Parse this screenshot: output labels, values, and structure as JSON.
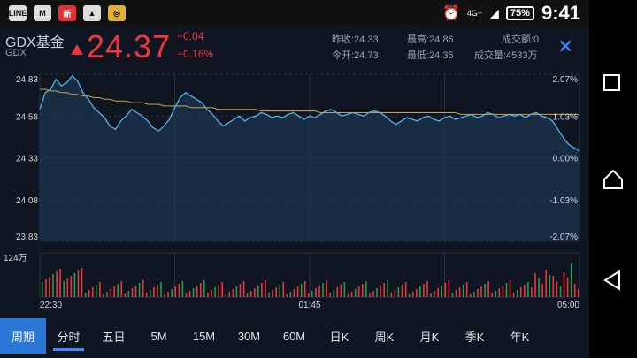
{
  "status_bar": {
    "icons": [
      "line-icon",
      "gmail-icon",
      "news-icon",
      "gallery-icon",
      "app-icon"
    ],
    "network": "4G+",
    "battery": "75%",
    "time": "9:41"
  },
  "header": {
    "name": "GDX基金",
    "code": "GDX",
    "price": "24.37",
    "change": "+0.04",
    "change_pct": "+0.16%",
    "prev_close": "昨收:24.33",
    "open": "今开:24.73",
    "high": "最高:24.86",
    "low": "最低:24.35",
    "turnover": "成交额:0",
    "volume": "成交量:4533万"
  },
  "colors": {
    "up": "#f0363c",
    "down": "#1aa34a",
    "line": "#5fb0e8",
    "avg": "#c9a443",
    "accent": "#2a77d6"
  },
  "chart_data": {
    "type": "line",
    "y_left_ticks": [
      "24.83",
      "24.58",
      "24.33",
      "24.08",
      "23.83"
    ],
    "y_right_ticks": [
      "2.07%",
      "1.03%",
      "0.00%",
      "-1.03%",
      "-2.07%"
    ],
    "ylim": [
      23.83,
      24.83
    ],
    "x_ticks": [
      "22:30",
      "01:45",
      "05:00"
    ],
    "volume_label": "124万",
    "price_series": [
      24.62,
      24.72,
      24.74,
      24.8,
      24.76,
      24.78,
      24.82,
      24.79,
      24.72,
      24.68,
      24.63,
      24.6,
      24.57,
      24.52,
      24.5,
      24.55,
      24.58,
      24.62,
      24.6,
      24.58,
      24.55,
      24.51,
      24.49,
      24.52,
      24.56,
      24.63,
      24.69,
      24.72,
      24.7,
      24.68,
      24.66,
      24.62,
      24.59,
      24.55,
      24.52,
      24.54,
      24.56,
      24.58,
      24.55,
      24.57,
      24.58,
      24.6,
      24.59,
      24.57,
      24.58,
      24.57,
      24.59,
      24.6,
      24.58,
      24.56,
      24.58,
      24.57,
      24.59,
      24.61,
      24.62,
      24.6,
      24.58,
      24.59,
      24.6,
      24.59,
      24.58,
      24.6,
      24.61,
      24.6,
      24.58,
      24.55,
      24.53,
      24.55,
      24.57,
      24.56,
      24.55,
      24.57,
      24.58,
      24.56,
      24.55,
      24.57,
      24.58,
      24.56,
      24.57,
      24.58,
      24.59,
      24.57,
      24.58,
      24.6,
      24.59,
      24.57,
      24.58,
      24.59,
      24.58,
      24.59,
      24.57,
      24.59,
      24.6,
      24.58,
      24.57,
      24.55,
      24.5,
      24.45,
      24.41,
      24.39,
      24.37
    ],
    "avg_series": [
      24.74,
      24.74,
      24.73,
      24.73,
      24.72,
      24.72,
      24.71,
      24.71,
      24.7,
      24.7,
      24.69,
      24.69,
      24.68,
      24.68,
      24.67,
      24.67,
      24.67,
      24.66,
      24.66,
      24.66,
      24.65,
      24.65,
      24.65,
      24.64,
      24.64,
      24.64,
      24.64,
      24.64,
      24.63,
      24.63,
      24.63,
      24.63,
      24.63,
      24.62,
      24.62,
      24.62,
      24.62,
      24.62,
      24.62,
      24.62,
      24.62,
      24.61,
      24.61,
      24.61,
      24.61,
      24.61,
      24.61,
      24.61,
      24.61,
      24.61,
      24.61,
      24.61,
      24.6,
      24.6,
      24.6,
      24.6,
      24.6,
      24.6,
      24.6,
      24.6,
      24.6,
      24.6,
      24.6,
      24.6,
      24.6,
      24.6,
      24.6,
      24.6,
      24.6,
      24.6,
      24.6,
      24.6,
      24.6,
      24.6,
      24.6,
      24.6,
      24.6,
      24.6,
      24.59,
      24.59,
      24.59,
      24.59,
      24.59,
      24.59,
      24.59,
      24.59,
      24.59,
      24.59,
      24.59,
      24.59,
      24.59,
      24.59,
      24.59,
      24.59,
      24.59,
      24.59,
      24.59,
      24.59,
      24.59,
      24.59,
      24.59
    ]
  },
  "tabs": [
    "周期",
    "分时",
    "五日",
    "5M",
    "15M",
    "30M",
    "60M",
    "日K",
    "周K",
    "月K",
    "季K",
    "年K"
  ]
}
